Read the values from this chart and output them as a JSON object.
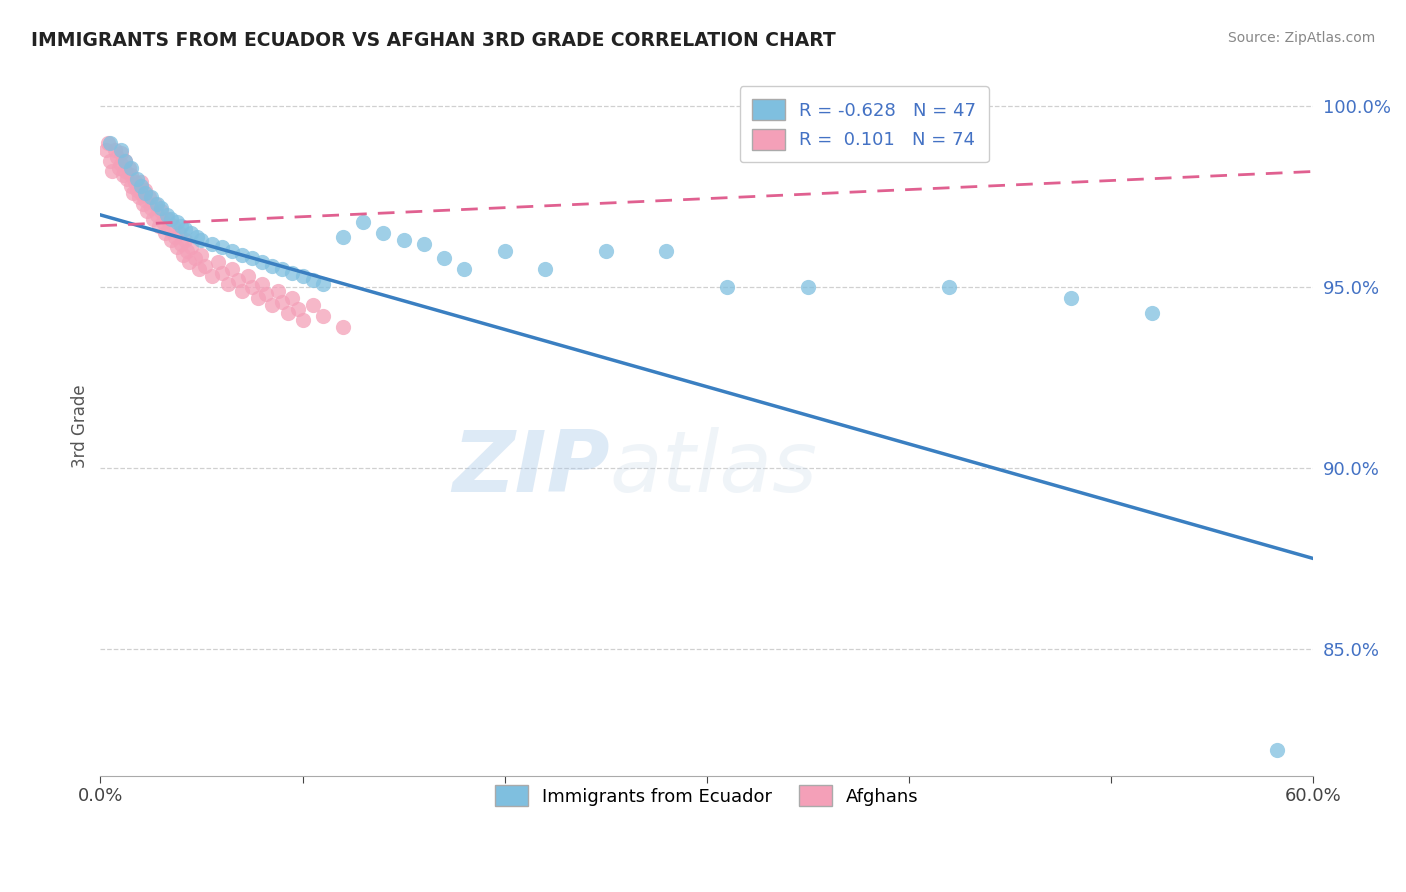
{
  "title": "IMMIGRANTS FROM ECUADOR VS AFGHAN 3RD GRADE CORRELATION CHART",
  "source": "Source: ZipAtlas.com",
  "ylabel": "3rd Grade",
  "xlim": [
    0.0,
    0.6
  ],
  "ylim": [
    0.815,
    1.008
  ],
  "yticks": [
    0.85,
    0.9,
    0.95,
    1.0
  ],
  "yticklabels": [
    "85.0%",
    "90.0%",
    "95.0%",
    "100.0%"
  ],
  "legend1_label": "Immigrants from Ecuador",
  "legend2_label": "Afghans",
  "R1": -0.628,
  "N1": 47,
  "R2": 0.101,
  "N2": 74,
  "color1": "#7fbfdf",
  "color2": "#f4a0b8",
  "trendline1_color": "#3a7fc1",
  "trendline2_color": "#e06090",
  "watermark_zip": "ZIP",
  "watermark_atlas": "atlas",
  "blue_scatter_x": [
    0.005,
    0.01,
    0.012,
    0.015,
    0.018,
    0.02,
    0.022,
    0.025,
    0.028,
    0.03,
    0.033,
    0.035,
    0.038,
    0.04,
    0.042,
    0.045,
    0.048,
    0.05,
    0.055,
    0.06,
    0.065,
    0.07,
    0.075,
    0.08,
    0.085,
    0.09,
    0.095,
    0.1,
    0.105,
    0.11,
    0.12,
    0.13,
    0.14,
    0.15,
    0.16,
    0.17,
    0.18,
    0.2,
    0.22,
    0.25,
    0.28,
    0.31,
    0.35,
    0.42,
    0.48,
    0.52,
    0.582
  ],
  "blue_scatter_y": [
    0.99,
    0.988,
    0.985,
    0.983,
    0.98,
    0.978,
    0.976,
    0.975,
    0.973,
    0.972,
    0.97,
    0.969,
    0.968,
    0.967,
    0.966,
    0.965,
    0.964,
    0.963,
    0.962,
    0.961,
    0.96,
    0.959,
    0.958,
    0.957,
    0.956,
    0.955,
    0.954,
    0.953,
    0.952,
    0.951,
    0.964,
    0.968,
    0.965,
    0.963,
    0.962,
    0.958,
    0.955,
    0.96,
    0.955,
    0.96,
    0.96,
    0.95,
    0.95,
    0.95,
    0.947,
    0.943,
    0.822
  ],
  "pink_scatter_x": [
    0.003,
    0.004,
    0.005,
    0.006,
    0.007,
    0.008,
    0.009,
    0.01,
    0.01,
    0.011,
    0.012,
    0.012,
    0.013,
    0.014,
    0.015,
    0.015,
    0.016,
    0.017,
    0.018,
    0.019,
    0.02,
    0.02,
    0.021,
    0.022,
    0.022,
    0.023,
    0.024,
    0.025,
    0.026,
    0.027,
    0.028,
    0.029,
    0.03,
    0.031,
    0.032,
    0.033,
    0.034,
    0.035,
    0.036,
    0.037,
    0.038,
    0.039,
    0.04,
    0.041,
    0.042,
    0.043,
    0.044,
    0.045,
    0.047,
    0.049,
    0.05,
    0.052,
    0.055,
    0.058,
    0.06,
    0.063,
    0.065,
    0.068,
    0.07,
    0.073,
    0.075,
    0.078,
    0.08,
    0.082,
    0.085,
    0.088,
    0.09,
    0.093,
    0.095,
    0.098,
    0.1,
    0.105,
    0.11,
    0.12
  ],
  "pink_scatter_y": [
    0.988,
    0.99,
    0.985,
    0.982,
    0.988,
    0.986,
    0.983,
    0.987,
    0.984,
    0.981,
    0.985,
    0.982,
    0.98,
    0.983,
    0.978,
    0.981,
    0.976,
    0.979,
    0.977,
    0.975,
    0.979,
    0.976,
    0.973,
    0.977,
    0.974,
    0.971,
    0.975,
    0.972,
    0.969,
    0.973,
    0.97,
    0.967,
    0.971,
    0.968,
    0.965,
    0.969,
    0.966,
    0.963,
    0.967,
    0.964,
    0.961,
    0.965,
    0.962,
    0.959,
    0.963,
    0.96,
    0.957,
    0.961,
    0.958,
    0.955,
    0.959,
    0.956,
    0.953,
    0.957,
    0.954,
    0.951,
    0.955,
    0.952,
    0.949,
    0.953,
    0.95,
    0.947,
    0.951,
    0.948,
    0.945,
    0.949,
    0.946,
    0.943,
    0.947,
    0.944,
    0.941,
    0.945,
    0.942,
    0.939
  ],
  "trendline1_x": [
    0.0,
    0.6
  ],
  "trendline1_y": [
    0.97,
    0.875
  ],
  "trendline2_x": [
    0.0,
    0.6
  ],
  "trendline2_y": [
    0.967,
    0.982
  ]
}
